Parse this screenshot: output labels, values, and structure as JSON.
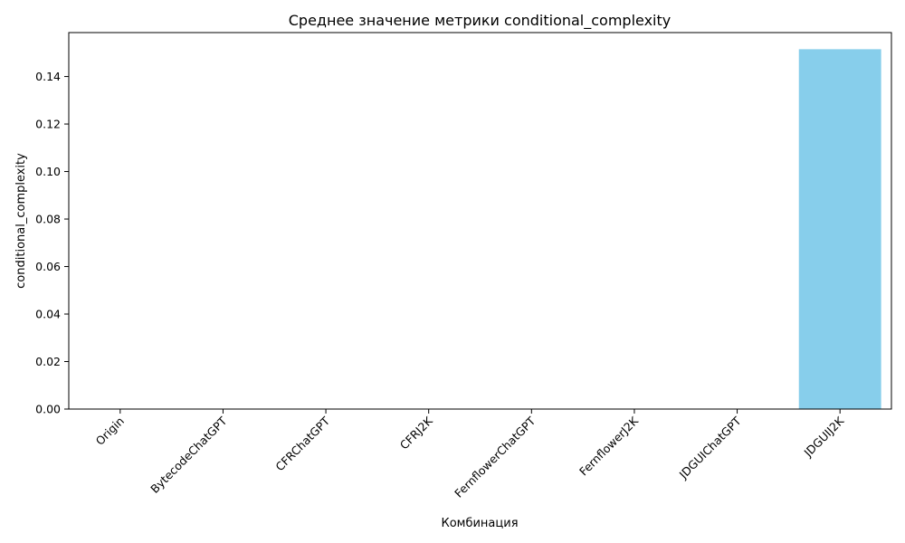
{
  "chart_data": {
    "type": "bar",
    "title": "Среднее значение метрики conditional_complexity",
    "xlabel": "Комбинация",
    "ylabel": "conditional_complexity",
    "categories": [
      "Origin",
      "BytecodeChatGPT",
      "CFRChatGPT",
      "CFRJ2K",
      "FernflowerChatGPT",
      "FernflowerJ2K",
      "JDGUIChatGPT",
      "JDGUIJ2K"
    ],
    "values": [
      0,
      0,
      0,
      0,
      0,
      0,
      0,
      0.1515
    ],
    "ylim": [
      0,
      0.1585
    ],
    "yticks": [
      0.0,
      0.02,
      0.04,
      0.06,
      0.08,
      0.1,
      0.12,
      0.14
    ],
    "bar_color": "#87CEEB",
    "grid": false,
    "legend": "none"
  }
}
